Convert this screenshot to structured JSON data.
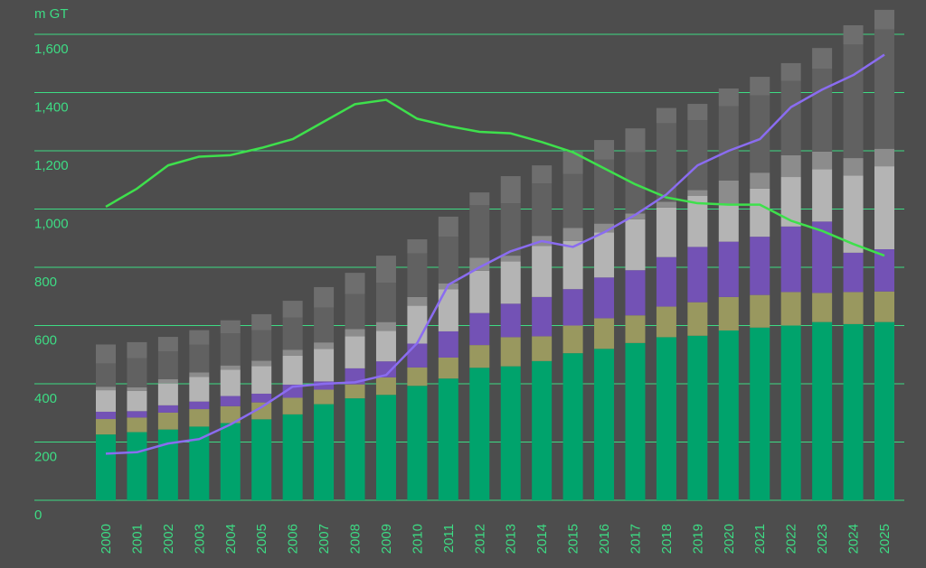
{
  "chart_data": {
    "type": "stacked-bar-line",
    "y_unit": "m GT",
    "categories": [
      "2000",
      "2001",
      "2002",
      "2003",
      "2004",
      "2005",
      "2006",
      "2007",
      "2008",
      "2009",
      "2010",
      "2011",
      "2012",
      "2013",
      "2014",
      "2015",
      "2016",
      "2017",
      "2018",
      "2019",
      "2020",
      "2021",
      "2022",
      "2023",
      "2024",
      "2025"
    ],
    "series": [
      {
        "color": "#00a36c",
        "values": [
          226,
          234,
          243,
          253,
          265,
          278,
          295,
          330,
          350,
          362,
          393,
          418,
          455,
          460,
          478,
          505,
          520,
          540,
          560,
          565,
          583,
          593,
          600,
          612,
          605,
          612
        ]
      },
      {
        "color": "#99985f",
        "values": [
          53,
          50,
          58,
          60,
          58,
          58,
          57,
          50,
          48,
          60,
          63,
          72,
          78,
          100,
          85,
          95,
          105,
          95,
          105,
          115,
          115,
          112,
          115,
          100,
          110,
          105
        ]
      },
      {
        "color": "#7352b5",
        "values": [
          25,
          22,
          25,
          26,
          35,
          30,
          45,
          28,
          55,
          55,
          82,
          90,
          110,
          115,
          135,
          125,
          140,
          155,
          170,
          190,
          190,
          200,
          225,
          245,
          135,
          145
        ]
      },
      {
        "color": "#b4b4b4",
        "values": [
          74,
          70,
          75,
          85,
          90,
          95,
          100,
          112,
          110,
          105,
          130,
          145,
          145,
          145,
          175,
          165,
          155,
          175,
          170,
          175,
          130,
          165,
          170,
          180,
          265,
          285
        ]
      },
      {
        "color": "#8c8c8c",
        "values": [
          12,
          12,
          15,
          15,
          15,
          18,
          20,
          22,
          25,
          30,
          30,
          20,
          45,
          20,
          35,
          45,
          30,
          20,
          20,
          20,
          80,
          55,
          75,
          60,
          60,
          60
        ]
      },
      {
        "color": "#616161",
        "values": [
          80,
          100,
          95,
          95,
          110,
          105,
          110,
          120,
          120,
          135,
          150,
          160,
          180,
          180,
          180,
          185,
          220,
          210,
          270,
          240,
          255,
          265,
          255,
          285,
          390,
          410
        ]
      },
      {
        "color": "#6e6e6e",
        "values": [
          65,
          55,
          50,
          50,
          45,
          55,
          58,
          70,
          73,
          93,
          48,
          69,
          44,
          93,
          62,
          77,
          67,
          82,
          52,
          56,
          61,
          64,
          61,
          71,
          66,
          67
        ]
      },
      {
        "type": "line",
        "color": "#3ee04c",
        "values": [
          1008,
          1070,
          1150,
          1180,
          1185,
          1210,
          1240,
          1300,
          1360,
          1375,
          1310,
          1285,
          1265,
          1260,
          1230,
          1195,
          1140,
          1085,
          1040,
          1020,
          1015,
          1015,
          960,
          925,
          880,
          840
        ]
      },
      {
        "type": "line",
        "color": "#8a6cf0",
        "values": [
          160,
          165,
          195,
          210,
          260,
          320,
          390,
          400,
          405,
          430,
          540,
          740,
          800,
          855,
          890,
          870,
          920,
          980,
          1050,
          1150,
          1200,
          1240,
          1350,
          1410,
          1460,
          1530
        ]
      }
    ],
    "ylim": [
      0,
      1700
    ],
    "yticks": [
      0,
      200,
      400,
      600,
      800,
      {
        "value": 1000,
        "label": "1,000"
      },
      {
        "value": 1200,
        "label": "1,200"
      },
      {
        "value": 1400,
        "label": "1,400"
      },
      {
        "value": 1600,
        "label": "1,600"
      }
    ],
    "grid": true,
    "grid_color": "#3ddc84",
    "text_color": "#3ddc84",
    "background": "#4d4d4d"
  }
}
